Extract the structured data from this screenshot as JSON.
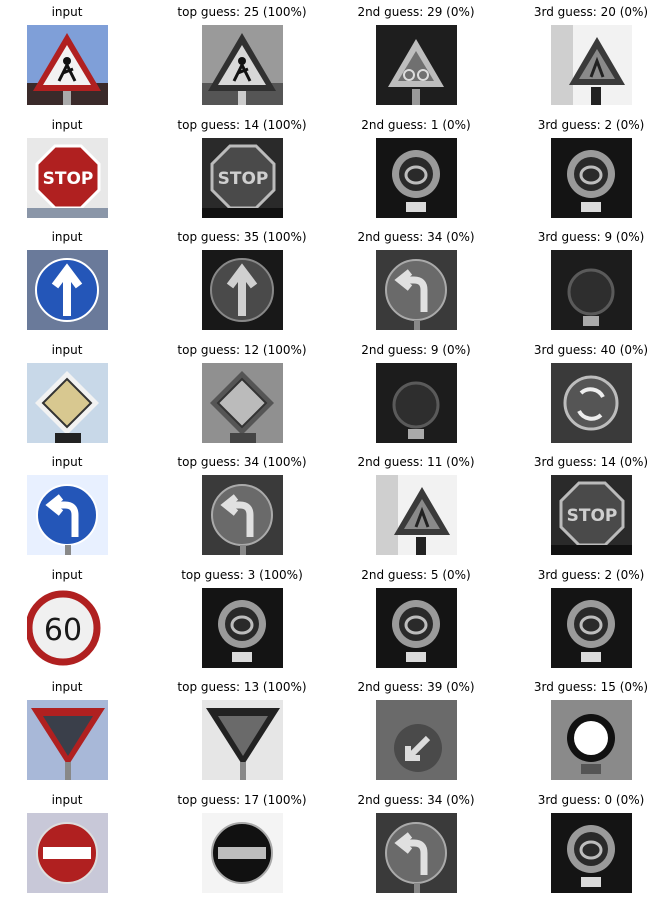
{
  "rows": [
    {
      "input_label": "input",
      "input_sign": "road-work",
      "guesses": [
        {
          "label": "top guess: 25 (100%)",
          "sign": "road-work"
        },
        {
          "label": "2nd guess: 29 (0%)",
          "sign": "bicycle-warning"
        },
        {
          "label": "3rd guess: 20 (0%)",
          "sign": "warning-triangle"
        }
      ]
    },
    {
      "input_label": "input",
      "input_sign": "stop",
      "guesses": [
        {
          "label": "top guess: 14 (100%)",
          "sign": "stop"
        },
        {
          "label": "2nd guess: 1 (0%)",
          "sign": "speed-limit"
        },
        {
          "label": "3rd guess: 2 (0%)",
          "sign": "speed-limit"
        }
      ]
    },
    {
      "input_label": "input",
      "input_sign": "ahead-only",
      "guesses": [
        {
          "label": "top guess: 35 (100%)",
          "sign": "ahead-only"
        },
        {
          "label": "2nd guess: 34 (0%)",
          "sign": "turn-left"
        },
        {
          "label": "3rd guess: 9 (0%)",
          "sign": "round-dark"
        }
      ]
    },
    {
      "input_label": "input",
      "input_sign": "priority-road",
      "guesses": [
        {
          "label": "top guess: 12 (100%)",
          "sign": "priority-road"
        },
        {
          "label": "2nd guess: 9 (0%)",
          "sign": "round-dark"
        },
        {
          "label": "3rd guess: 40 (0%)",
          "sign": "roundabout"
        }
      ]
    },
    {
      "input_label": "input",
      "input_sign": "turn-left",
      "guesses": [
        {
          "label": "top guess: 34 (100%)",
          "sign": "turn-left"
        },
        {
          "label": "2nd guess: 11 (0%)",
          "sign": "warning-triangle"
        },
        {
          "label": "3rd guess: 14 (0%)",
          "sign": "stop"
        }
      ]
    },
    {
      "input_label": "input",
      "input_sign": "speed-60",
      "guesses": [
        {
          "label": "top guess: 3 (100%)",
          "sign": "speed-limit"
        },
        {
          "label": "2nd guess: 5 (0%)",
          "sign": "speed-limit"
        },
        {
          "label": "3rd guess: 2 (0%)",
          "sign": "speed-limit"
        }
      ]
    },
    {
      "input_label": "input",
      "input_sign": "yield",
      "guesses": [
        {
          "label": "top guess: 13 (100%)",
          "sign": "yield"
        },
        {
          "label": "2nd guess: 39 (0%)",
          "sign": "keep-left"
        },
        {
          "label": "3rd guess: 15 (0%)",
          "sign": "no-vehicles"
        }
      ]
    },
    {
      "input_label": "input",
      "input_sign": "no-entry",
      "guesses": [
        {
          "label": "top guess: 17 (100%)",
          "sign": "no-entry"
        },
        {
          "label": "2nd guess: 34 (0%)",
          "sign": "turn-left"
        },
        {
          "label": "3rd guess: 0 (0%)",
          "sign": "speed-limit"
        }
      ]
    }
  ],
  "palette": {
    "sky": "#7f9fd8",
    "red": "#b02020",
    "blue": "#2456b8",
    "white": "#f2f2f2",
    "yellow": "#d8c890",
    "dark": "#1a1a1a"
  }
}
